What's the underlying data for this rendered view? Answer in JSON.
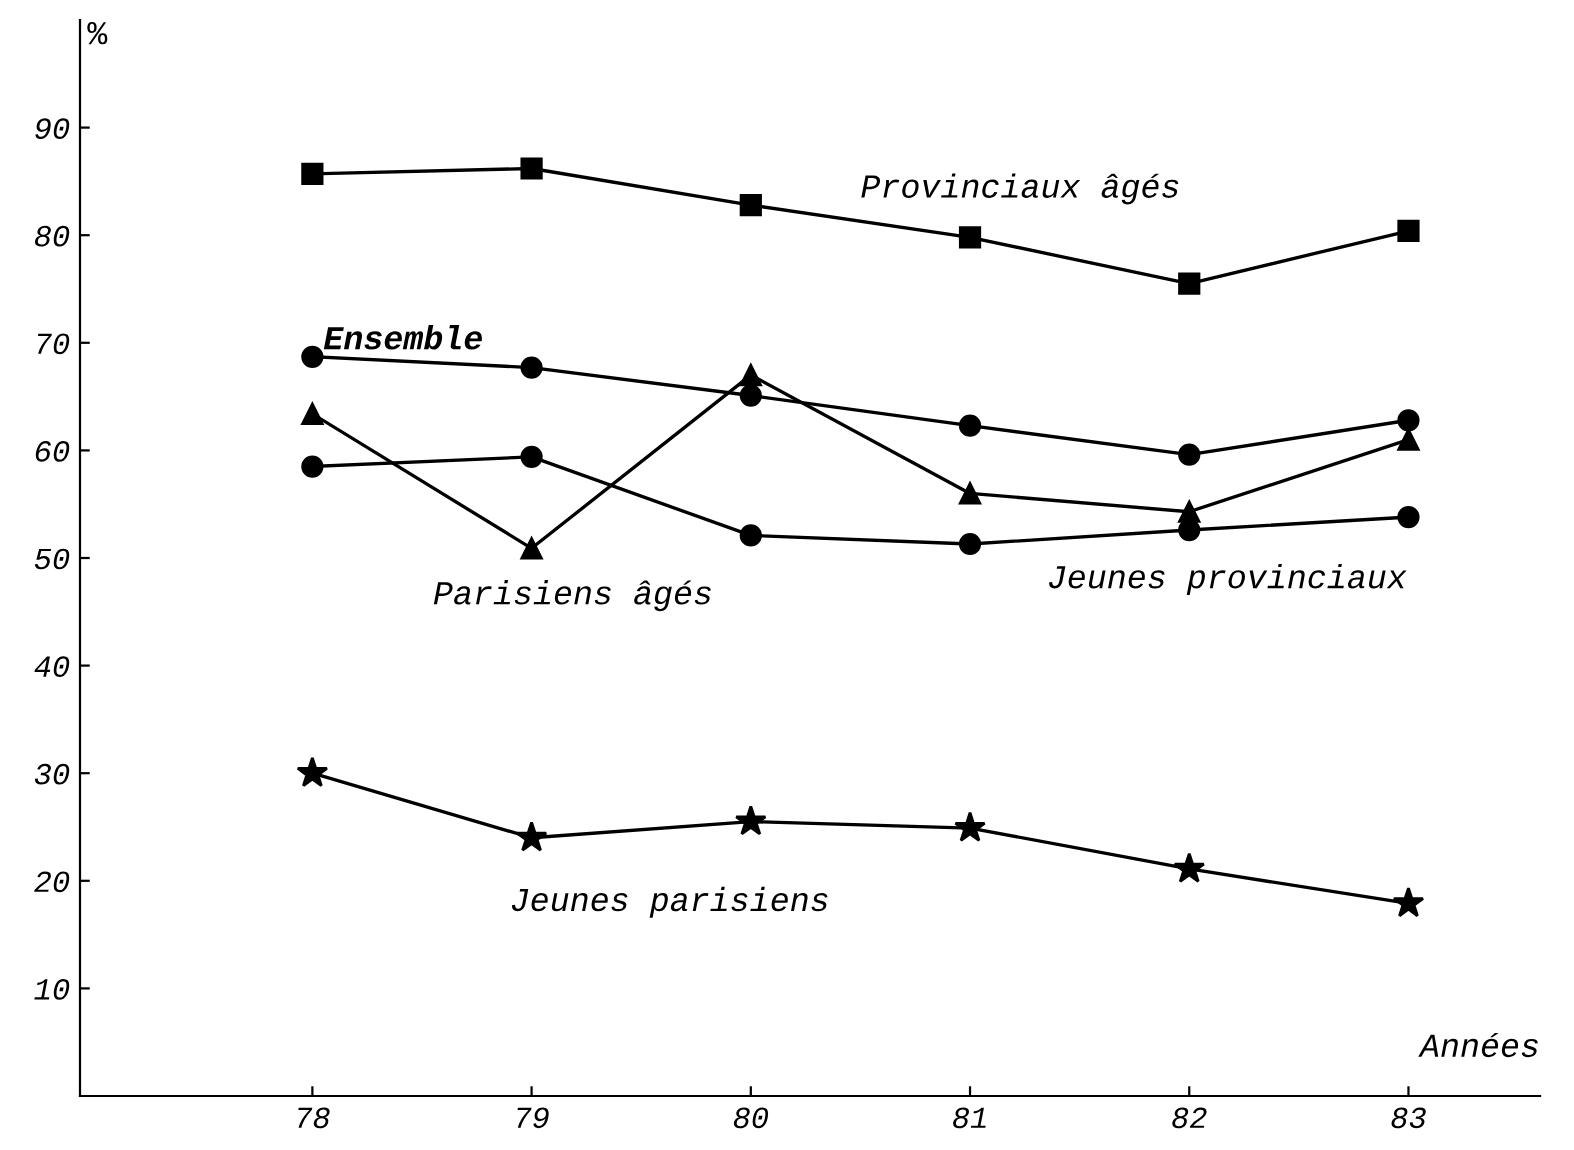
{
  "chart_data": {
    "type": "line",
    "xlabel": "Années",
    "ylabel": "%",
    "x": [
      78,
      79,
      80,
      81,
      82,
      83
    ],
    "xlim": [
      76.94,
      83.6
    ],
    "ylim": [
      0,
      100
    ],
    "xticks": [
      78,
      79,
      80,
      81,
      82,
      83
    ],
    "yticks": [
      10,
      20,
      30,
      40,
      50,
      60,
      70,
      80,
      90
    ],
    "grid": false,
    "legend": false,
    "line_style": "solid",
    "series": [
      {
        "name": "Provinciaux âgés",
        "color": "#000000",
        "marker": "square",
        "values": [
          85.7,
          86.2,
          82.8,
          79.8,
          75.5,
          80.4
        ]
      },
      {
        "name": "Ensemble",
        "color": "#000000",
        "marker": "circle",
        "values": [
          68.7,
          67.7,
          65.1,
          62.3,
          59.6,
          62.8
        ]
      },
      {
        "name": "Parisiens âgés",
        "color": "#000000",
        "marker": "triangle",
        "values": [
          63.4,
          50.9,
          67.0,
          56.0,
          54.3,
          61.0
        ]
      },
      {
        "name": "Jeunes provinciaux",
        "color": "#000000",
        "marker": "circle",
        "values": [
          58.5,
          59.4,
          52.1,
          51.3,
          52.6,
          53.8
        ]
      },
      {
        "name": "Jeunes parisiens",
        "color": "#000000",
        "marker": "star",
        "values": [
          30.0,
          24.0,
          25.5,
          24.9,
          21.1,
          17.9
        ]
      }
    ]
  }
}
